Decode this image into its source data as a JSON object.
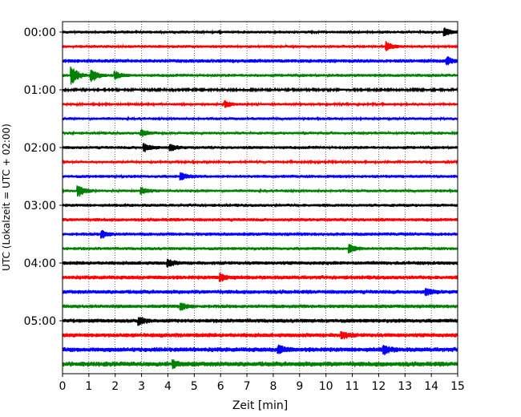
{
  "chart_data": {
    "type": "line",
    "title": "",
    "xlabel": "Zeit  [min]",
    "ylabel": "UTC (Lokalzeit = UTC + 02:00)",
    "xlim": [
      0,
      15
    ],
    "x_ticks": [
      0,
      1,
      2,
      3,
      4,
      5,
      6,
      7,
      8,
      9,
      10,
      11,
      12,
      13,
      14,
      15
    ],
    "x_grid": "dotted vertical lines at each minute",
    "y_tick_labels": [
      "00:00",
      "01:00",
      "02:00",
      "03:00",
      "04:00",
      "05:00"
    ],
    "trace_minutes": 15,
    "color_cycle": [
      "#000000",
      "#ff0000",
      "#0000ff",
      "#008000"
    ],
    "series": [
      {
        "offset": "00:00",
        "color": "#000000",
        "amp": 2.0,
        "events": [
          {
            "x": 14.5,
            "a": 5
          }
        ]
      },
      {
        "offset": "00:15",
        "color": "#ff0000",
        "amp": 2.0,
        "events": [
          {
            "x": 12.3,
            "a": 5
          }
        ]
      },
      {
        "offset": "00:30",
        "color": "#0000ff",
        "amp": 2.6,
        "events": [
          {
            "x": 14.6,
            "a": 4
          }
        ]
      },
      {
        "offset": "00:45",
        "color": "#008000",
        "amp": 2.2,
        "events": [
          {
            "x": 0.35,
            "a": 11
          },
          {
            "x": 1.1,
            "a": 8
          },
          {
            "x": 2.0,
            "a": 4
          }
        ]
      },
      {
        "offset": "01:00",
        "color": "#000000",
        "amp": 1.6,
        "events": []
      },
      {
        "offset": "01:15",
        "color": "#ff0000",
        "amp": 1.8,
        "events": [
          {
            "x": 6.2,
            "a": 4
          }
        ]
      },
      {
        "offset": "01:30",
        "color": "#0000ff",
        "amp": 2.0,
        "events": []
      },
      {
        "offset": "01:45",
        "color": "#008000",
        "amp": 2.0,
        "events": [
          {
            "x": 3.0,
            "a": 4
          }
        ]
      },
      {
        "offset": "02:00",
        "color": "#000000",
        "amp": 2.2,
        "events": [
          {
            "x": 3.1,
            "a": 5
          },
          {
            "x": 4.1,
            "a": 4
          }
        ]
      },
      {
        "offset": "02:15",
        "color": "#ff0000",
        "amp": 1.8,
        "events": []
      },
      {
        "offset": "02:30",
        "color": "#0000ff",
        "amp": 2.2,
        "events": [
          {
            "x": 4.5,
            "a": 4
          }
        ]
      },
      {
        "offset": "02:45",
        "color": "#008000",
        "amp": 2.0,
        "events": [
          {
            "x": 0.6,
            "a": 7
          },
          {
            "x": 3.0,
            "a": 4
          }
        ]
      },
      {
        "offset": "03:00",
        "color": "#000000",
        "amp": 2.2,
        "events": []
      },
      {
        "offset": "03:15",
        "color": "#ff0000",
        "amp": 2.4,
        "events": []
      },
      {
        "offset": "03:30",
        "color": "#0000ff",
        "amp": 2.4,
        "events": [
          {
            "x": 1.5,
            "a": 4
          }
        ]
      },
      {
        "offset": "03:45",
        "color": "#008000",
        "amp": 2.2,
        "events": [
          {
            "x": 10.9,
            "a": 5
          }
        ]
      },
      {
        "offset": "04:00",
        "color": "#000000",
        "amp": 2.6,
        "events": [
          {
            "x": 4.0,
            "a": 4
          }
        ]
      },
      {
        "offset": "04:15",
        "color": "#ff0000",
        "amp": 2.8,
        "events": [
          {
            "x": 6.0,
            "a": 4
          }
        ]
      },
      {
        "offset": "04:30",
        "color": "#0000ff",
        "amp": 2.8,
        "events": [
          {
            "x": 13.8,
            "a": 4
          }
        ]
      },
      {
        "offset": "04:45",
        "color": "#008000",
        "amp": 2.6,
        "events": [
          {
            "x": 4.5,
            "a": 4
          }
        ]
      },
      {
        "offset": "05:00",
        "color": "#000000",
        "amp": 2.8,
        "events": [
          {
            "x": 2.9,
            "a": 4
          }
        ]
      },
      {
        "offset": "05:15",
        "color": "#ff0000",
        "amp": 3.0,
        "events": [
          {
            "x": 10.6,
            "a": 4
          }
        ]
      },
      {
        "offset": "05:30",
        "color": "#0000ff",
        "amp": 3.2,
        "events": [
          {
            "x": 8.2,
            "a": 5
          },
          {
            "x": 12.2,
            "a": 5
          }
        ]
      },
      {
        "offset": "05:45",
        "color": "#008000",
        "amp": 3.4,
        "events": [
          {
            "x": 4.2,
            "a": 4
          }
        ]
      }
    ]
  }
}
